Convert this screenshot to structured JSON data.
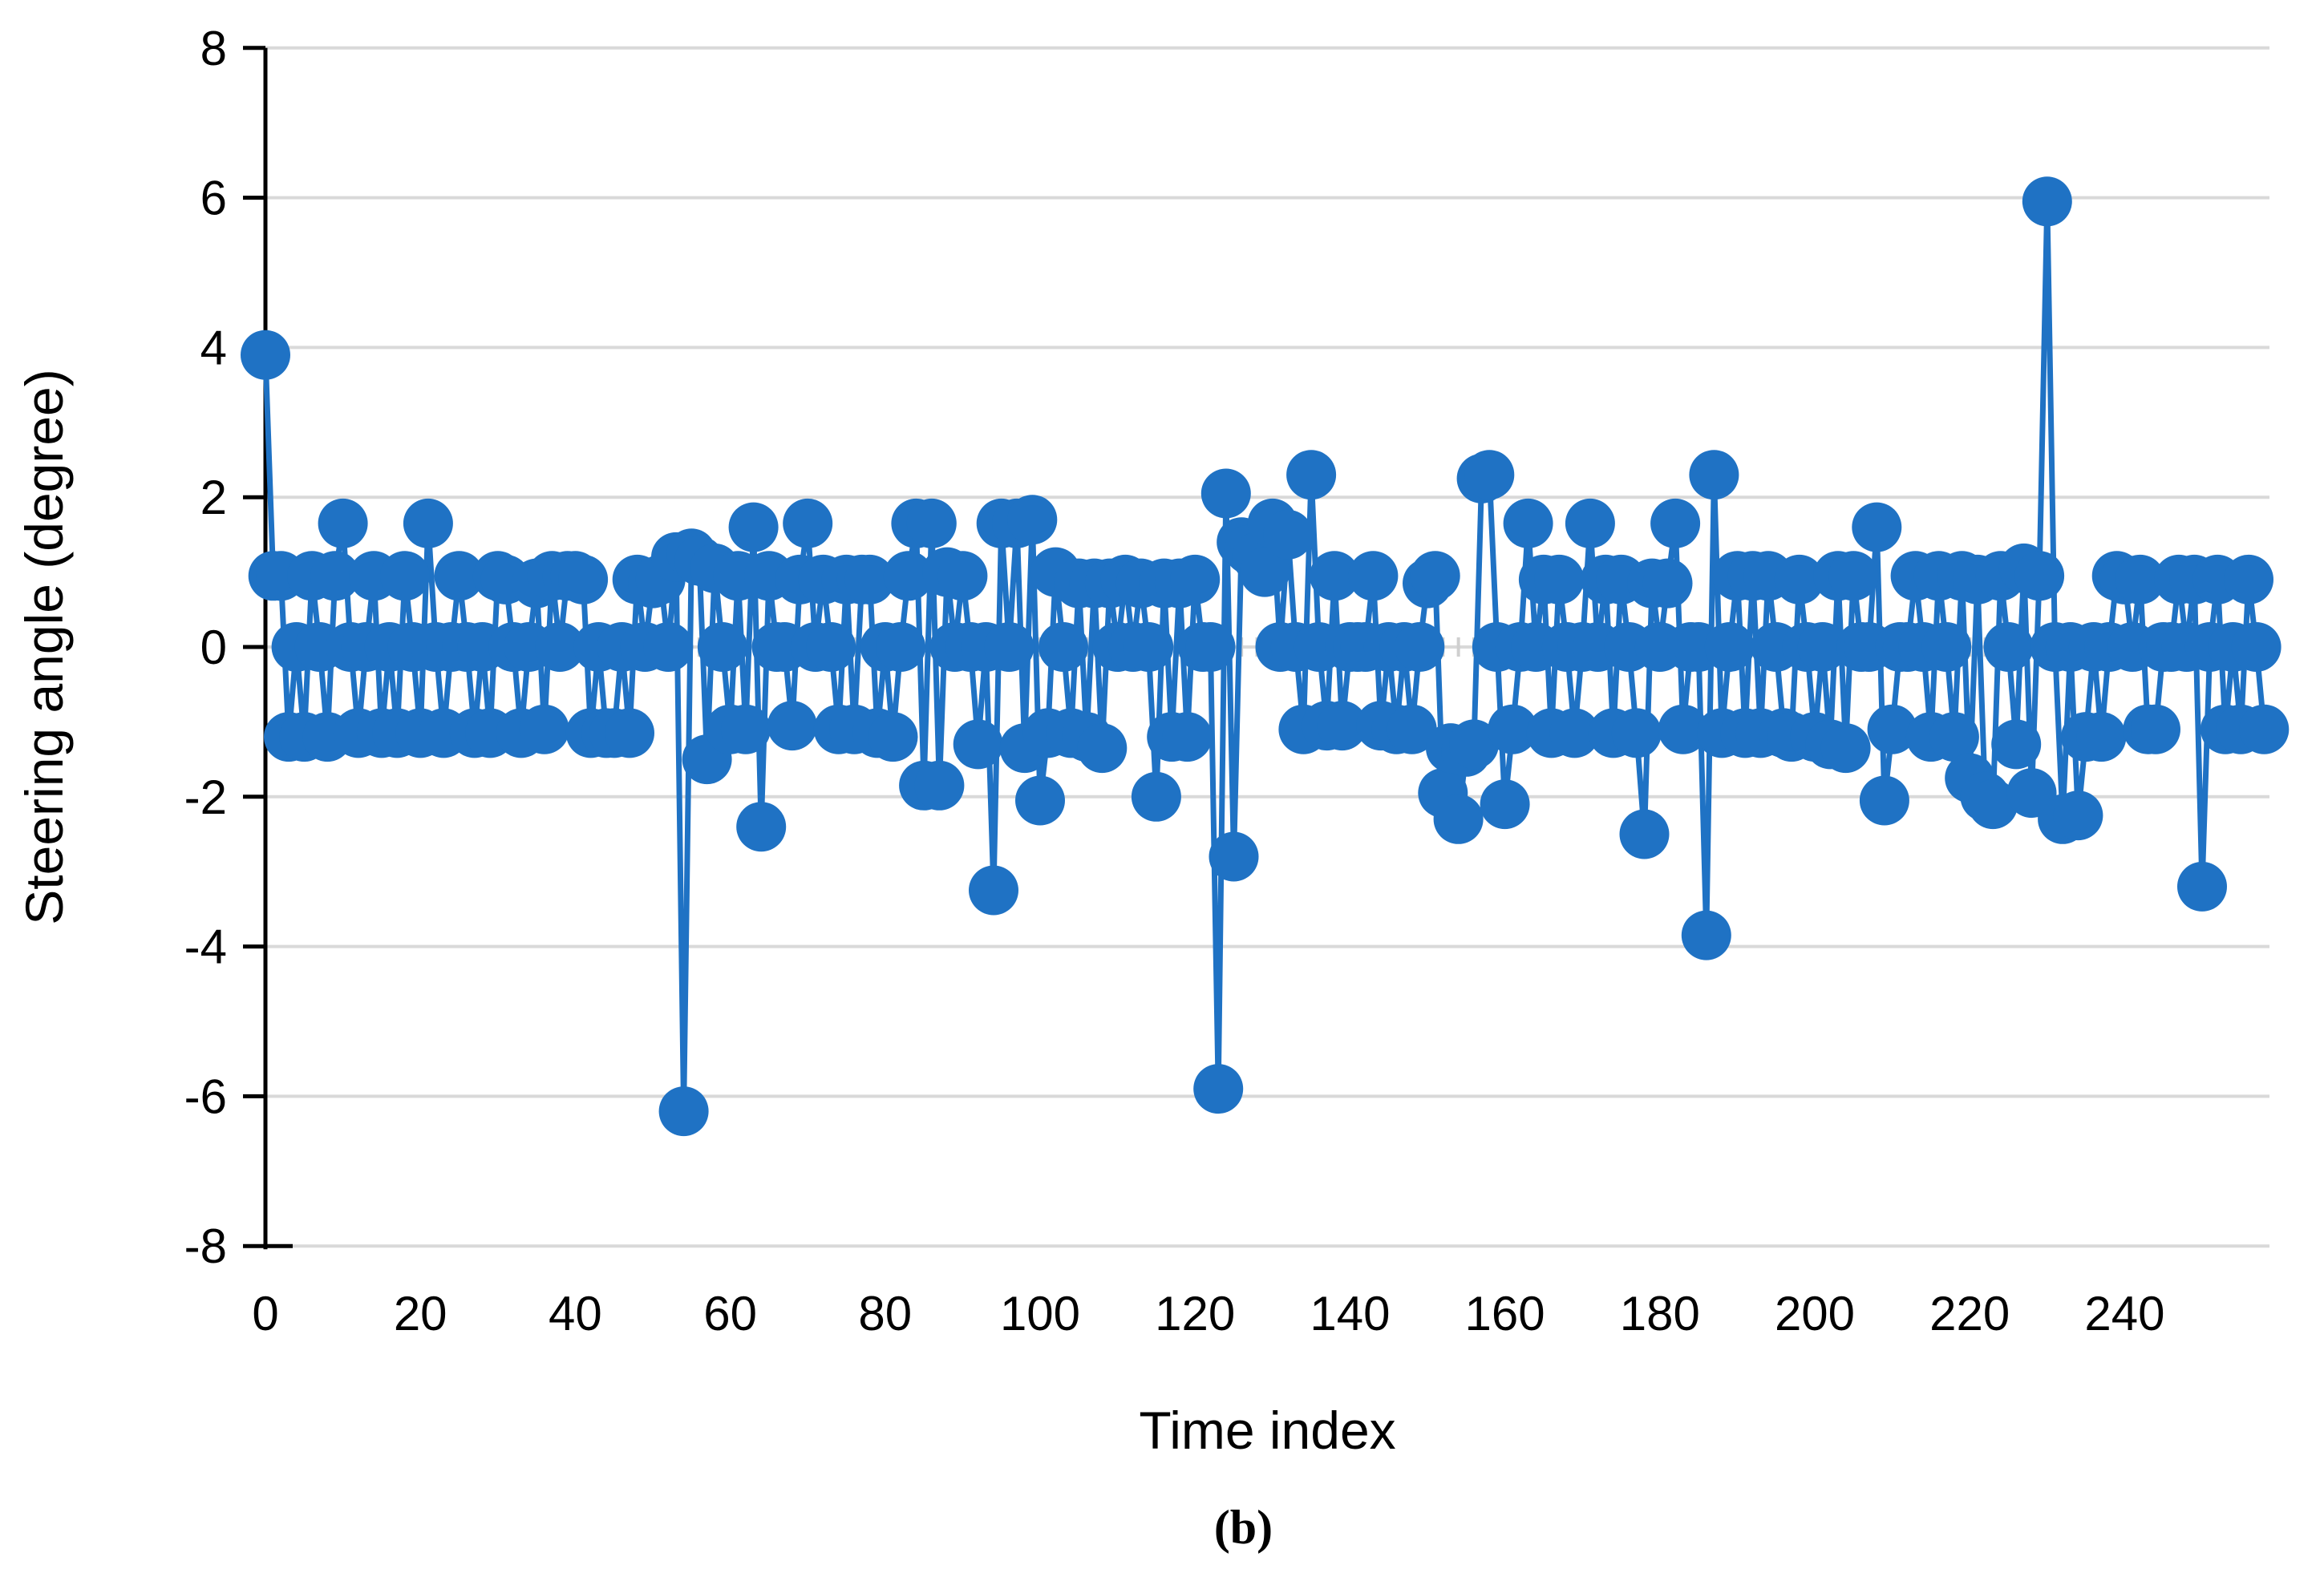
{
  "figure": {
    "caption": "(b)"
  },
  "colors": {
    "series_blue": "#1f72c4",
    "gridline_gray": "#d9d9d9",
    "zero_tick_gray": "#cfcfcf",
    "axis_black": "#000000",
    "text_black": "#000000",
    "background": "#ffffff"
  },
  "chart_data": {
    "type": "line",
    "title": "",
    "xlabel": "Time index",
    "ylabel": "Steering angle (degree)",
    "xlim": [
      0,
      259
    ],
    "ylim": [
      -8,
      8
    ],
    "x_ticks": [
      0,
      20,
      40,
      60,
      80,
      100,
      120,
      140,
      160,
      180,
      200,
      220,
      240
    ],
    "y_ticks": [
      8,
      6,
      4,
      2,
      0,
      -2,
      -4,
      -6,
      -8
    ],
    "grid": "horizontal-only",
    "legend": "none",
    "marker": "circle",
    "series": [
      {
        "name": "steering-angle",
        "x_is_index": true,
        "values": [
          3.9,
          0.95,
          0.95,
          -1.2,
          0,
          -1.2,
          0.95,
          0,
          -1.2,
          0.95,
          1.65,
          0,
          -1.15,
          0,
          0.95,
          -1.15,
          0,
          -1.15,
          0.95,
          0,
          -1.15,
          1.65,
          0,
          -1.15,
          0,
          0.95,
          0,
          -1.15,
          0,
          -1.15,
          0.95,
          0.9,
          0,
          -1.15,
          0,
          0.85,
          -1.1,
          0.95,
          0,
          0.95,
          0.95,
          0.9,
          -1.15,
          0,
          -1.15,
          -1.15,
          0,
          -1.15,
          0.9,
          0,
          0.85,
          0.9,
          0,
          1.2,
          -6.2,
          1.25,
          1.15,
          -1.5,
          1.05,
          0,
          -1.1,
          0.95,
          -1.1,
          1.6,
          -2.4,
          0.95,
          0,
          0,
          -1.05,
          0.9,
          1.65,
          0,
          0.9,
          0,
          -1.1,
          0.9,
          -1.1,
          0.9,
          0.9,
          -1.15,
          0,
          -1.2,
          0,
          0.95,
          1.65,
          -1.85,
          1.65,
          -1.85,
          1.0,
          0,
          0.95,
          0,
          -1.3,
          0,
          -3.25,
          1.65,
          0,
          1.65,
          -1.35,
          1.7,
          -2.05,
          -1.15,
          1.0,
          0,
          -1.15,
          0.85,
          -1.2,
          0.85,
          -1.35,
          0.85,
          0,
          0.9,
          0,
          0.85,
          0,
          -2.0,
          0.85,
          -1.2,
          0.85,
          -1.2,
          0.9,
          0,
          0,
          -5.9,
          2.05,
          -2.8,
          1.4,
          1.3,
          1.2,
          1.0,
          1.65,
          0,
          1.5,
          0,
          -1.1,
          2.3,
          0,
          -1.05,
          0.95,
          -1.05,
          0,
          0,
          0,
          0.95,
          -1.05,
          0,
          -1.1,
          0,
          -1.1,
          0,
          0.85,
          0.95,
          -1.95,
          -1.35,
          -2.3,
          -1.4,
          -1.3,
          2.25,
          2.3,
          0,
          -2.1,
          -1.1,
          0,
          1.65,
          0,
          0.9,
          -1.15,
          0.9,
          0,
          -1.15,
          0,
          1.65,
          0,
          0.9,
          -1.15,
          0.9,
          0,
          -1.15,
          -2.5,
          0.85,
          0,
          0.85,
          1.65,
          -1.1,
          0,
          0,
          -3.85,
          2.3,
          -1.15,
          0,
          0.95,
          -1.15,
          0.95,
          -1.15,
          0.95,
          0,
          -1.15,
          -1.2,
          0.9,
          0,
          -1.2,
          0,
          -1.3,
          0.95,
          -1.35,
          0.95,
          0,
          0,
          1.6,
          -2.05,
          -1.1,
          0,
          0,
          0.95,
          0,
          -1.2,
          0.95,
          0,
          -1.2,
          0.95,
          -1.75,
          0.9,
          -2.0,
          -2.1,
          0.95,
          0,
          -1.3,
          1.05,
          -1.95,
          0.95,
          5.95,
          0,
          -2.3,
          0,
          -2.25,
          -1.2,
          0,
          -1.2,
          0,
          0.95,
          0.9,
          0,
          0.9,
          -1.1,
          -1.1,
          0,
          0,
          0.9,
          0,
          0.9,
          -3.2,
          0,
          0.9,
          -1.1,
          0,
          -1.1,
          0.9,
          0,
          -1.1
        ]
      }
    ]
  }
}
